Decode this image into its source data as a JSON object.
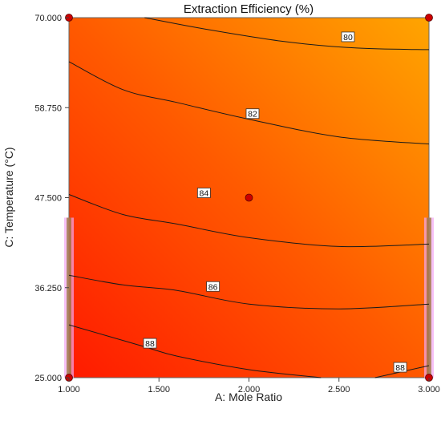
{
  "chart_data": {
    "type": "contour",
    "title": "Extraction Efficiency (%)",
    "xlabel": "A: Mole Ratio",
    "ylabel": "C: Temperature (°C)",
    "xlim": [
      1.0,
      3.0
    ],
    "ylim": [
      25.0,
      70.0
    ],
    "xticks": [
      "1.000",
      "1.500",
      "2.000",
      "2.500",
      "3.000"
    ],
    "yticks": [
      "25.000",
      "36.250",
      "47.500",
      "58.750",
      "70.000"
    ],
    "colors": {
      "low": "#ffa500",
      "high": "#ff1a00",
      "contour": "#1a1a1a",
      "design_point": "#cc0000",
      "range_bar": "#f2a6f2"
    },
    "contours": [
      {
        "level": "80",
        "points": [
          [
            1.42,
            70.0
          ],
          [
            1.75,
            68.6
          ],
          [
            2.2,
            67.0
          ],
          [
            2.6,
            66.2
          ],
          [
            3.0,
            66.0
          ]
        ],
        "label_at": [
          2.55,
          67.6
        ]
      },
      {
        "level": "82",
        "points": [
          [
            1.0,
            64.5
          ],
          [
            1.3,
            61.0
          ],
          [
            1.6,
            59.4
          ],
          [
            2.0,
            57.3
          ],
          [
            2.5,
            55.1
          ],
          [
            3.0,
            54.2
          ]
        ],
        "label_at": [
          2.02,
          58.0
        ]
      },
      {
        "level": "84",
        "points": [
          [
            1.0,
            47.9
          ],
          [
            1.3,
            45.4
          ],
          [
            1.6,
            44.2
          ],
          [
            2.0,
            42.5
          ],
          [
            2.5,
            41.4
          ],
          [
            3.0,
            41.7
          ]
        ],
        "label_at": [
          1.75,
          48.1
        ]
      },
      {
        "level": "86",
        "points": [
          [
            1.0,
            37.8
          ],
          [
            1.3,
            36.6
          ],
          [
            1.6,
            35.9
          ],
          [
            2.0,
            34.2
          ],
          [
            2.5,
            33.6
          ],
          [
            3.0,
            34.2
          ]
        ],
        "label_at": [
          1.8,
          36.4
        ]
      },
      {
        "level": "88",
        "points": [
          [
            1.0,
            31.6
          ],
          [
            1.4,
            29.0
          ],
          [
            1.6,
            27.7
          ],
          [
            2.0,
            26.0
          ],
          [
            2.4,
            25.0
          ]
        ],
        "label_at": [
          1.45,
          29.3
        ]
      },
      {
        "level": "88",
        "points": [
          [
            2.7,
            25.0
          ],
          [
            3.0,
            26.5
          ]
        ],
        "label_at": [
          2.84,
          26.3
        ]
      }
    ],
    "design_points": [
      [
        1.0,
        70.0
      ],
      [
        3.0,
        70.0
      ],
      [
        2.0,
        47.5
      ],
      [
        1.0,
        25.0
      ],
      [
        3.0,
        25.0
      ]
    ],
    "range_bars": [
      {
        "x": 1.0,
        "y_low": 25.0,
        "y_high": 45.0
      },
      {
        "x": 3.0,
        "y_low": 25.0,
        "y_high": 45.0
      }
    ]
  }
}
